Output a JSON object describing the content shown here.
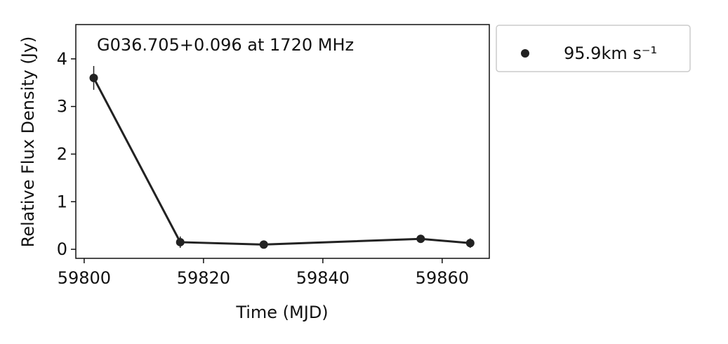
{
  "chart_data": {
    "type": "line",
    "annotation": "G036.705+0.096 at 1720 MHz",
    "xlabel": "Time (MJD)",
    "ylabel": "Relative Flux Density (Jy)",
    "x": [
      59801.6,
      59816.1,
      59830.1,
      59856.4,
      59864.7
    ],
    "series": [
      {
        "name": "95.9km s⁻¹",
        "color": "#222222",
        "values": [
          3.6,
          0.15,
          0.1,
          0.22,
          0.13
        ],
        "errors": [
          0.25,
          0.12,
          0.03,
          0.03,
          0.1
        ]
      }
    ],
    "xlim": [
      59798.6,
      59867.9
    ],
    "xticks": [
      59800,
      59820,
      59840,
      59860
    ],
    "ylim": [
      -0.19,
      4.72
    ],
    "yticks": [
      0,
      1,
      2,
      3,
      4
    ],
    "legend": "outside-upper-right"
  }
}
